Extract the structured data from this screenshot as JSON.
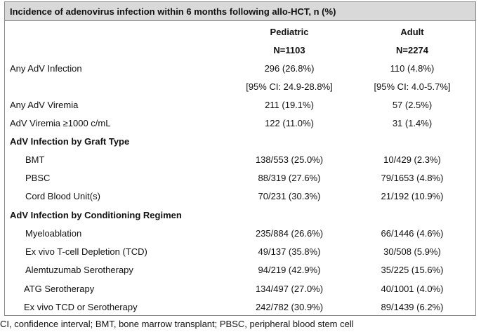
{
  "title": "Incidence of adenovirus infection within 6 months following allo-HCT, n (%)",
  "header": {
    "pediatric_label": "Pediatric",
    "pediatric_n": "N=1103",
    "adult_label": "Adult",
    "adult_n": "N=2274"
  },
  "rows": [
    {
      "label": "Any AdV Infection",
      "pediatric": "296 (26.8%)",
      "adult": "110 (4.8%)"
    },
    {
      "label": "",
      "pediatric": "[95% CI: 24.9-28.8%]",
      "adult": "[95% CI: 4.0-5.7%]"
    },
    {
      "label": "Any AdV Viremia",
      "pediatric": "211 (19.1%)",
      "adult": "57 (2.5%)"
    },
    {
      "label": "AdV Viremia ≥1000 c/mL",
      "pediatric": "122 (11.0%)",
      "adult": "31 (1.4%)"
    }
  ],
  "graft_section": {
    "heading": "AdV Infection by Graft Type",
    "rows": [
      {
        "label": "BMT",
        "pediatric": "138/553 (25.0%)",
        "adult": "10/429 (2.3%)"
      },
      {
        "label": "PBSC",
        "pediatric": "88/319 (27.6%)",
        "adult": "79/1653 (4.8%)"
      },
      {
        "label": "Cord Blood Unit(s)",
        "pediatric": "70/231 (30.3%)",
        "adult": "21/192 (10.9%)"
      }
    ]
  },
  "conditioning_section": {
    "heading": "AdV Infection by Conditioning Regimen",
    "rows": [
      {
        "label": "Myeloablation",
        "pediatric": "235/884 (26.6%)",
        "adult": "66/1446 (4.6%)"
      },
      {
        "label": "Ex vivo T-cell Depletion (TCD)",
        "pediatric": "49/137 (35.8%)",
        "adult": "30/508 (5.9%)"
      },
      {
        "label": "Alemtuzumab Serotherapy",
        "pediatric": "94/219 (42.9%)",
        "adult": "35/225 (15.6%)"
      },
      {
        "label": "ATG Serotherapy",
        "pediatric": "134/497 (27.0%)",
        "adult": "40/1001 (4.0%)"
      },
      {
        "label": "Ex vivo TCD or Serotherapy",
        "pediatric": "242/782 (30.9%)",
        "adult": "89/1439 (6.2%)"
      }
    ]
  },
  "footnote": "CI, confidence interval; BMT, bone marrow transplant; PBSC, peripheral blood stem cell"
}
